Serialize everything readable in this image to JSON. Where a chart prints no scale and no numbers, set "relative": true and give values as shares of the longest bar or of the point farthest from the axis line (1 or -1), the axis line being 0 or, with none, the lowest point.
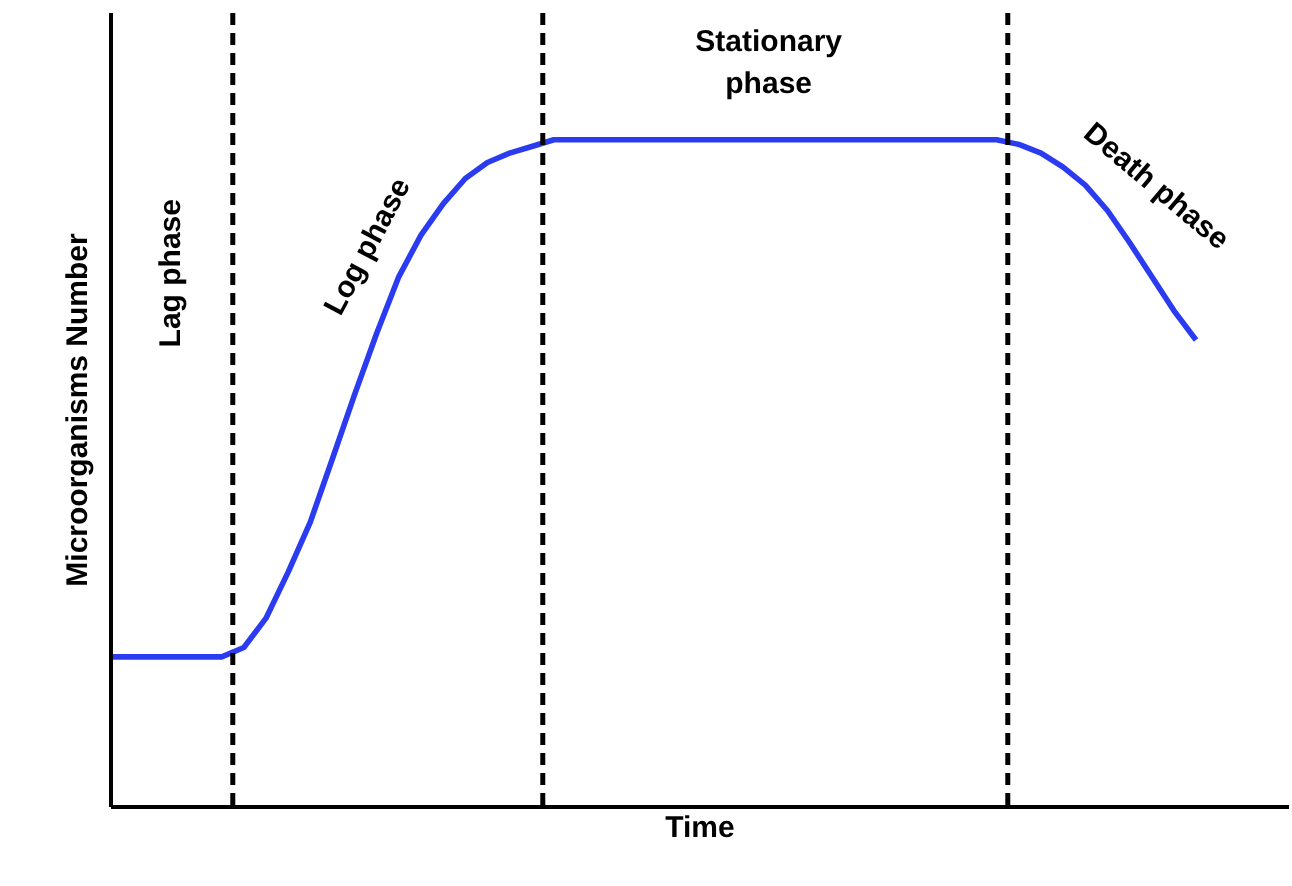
{
  "chart_data": {
    "type": "line",
    "relative": true,
    "xlabel": "Time",
    "ylabel": "Microorganisms Number",
    "categories": [
      null,
      null,
      null,
      null,
      null,
      null,
      null,
      null,
      null,
      null,
      null,
      null,
      null,
      null,
      null,
      null,
      null,
      null,
      null,
      null,
      null,
      null,
      null,
      null,
      null,
      null,
      null,
      null,
      null,
      null,
      null,
      null,
      null,
      null,
      null,
      null,
      null,
      null,
      null,
      null,
      null,
      null,
      null,
      null,
      null,
      null,
      null,
      null,
      null,
      null
    ],
    "series": [
      {
        "color": "#2b3cf0",
        "values": [
          0.225,
          0.225,
          0.225,
          0.225,
          0.225,
          0.225,
          0.239,
          0.283,
          0.352,
          0.427,
          0.522,
          0.618,
          0.71,
          0.795,
          0.857,
          0.904,
          0.942,
          0.966,
          0.98,
          0.99,
          1,
          1,
          1,
          1,
          1,
          1,
          1,
          1,
          1,
          1,
          1,
          1,
          1,
          1,
          1,
          1,
          1,
          1,
          1,
          1,
          1,
          0.993,
          0.98,
          0.959,
          0.932,
          0.894,
          0.846,
          0.795,
          0.744,
          0.7
        ]
      }
    ],
    "annotations": [
      "Lag phase",
      "Log phase",
      "Stationary phase",
      "Death phase"
    ],
    "marker": "none",
    "line_style": "solid"
  }
}
